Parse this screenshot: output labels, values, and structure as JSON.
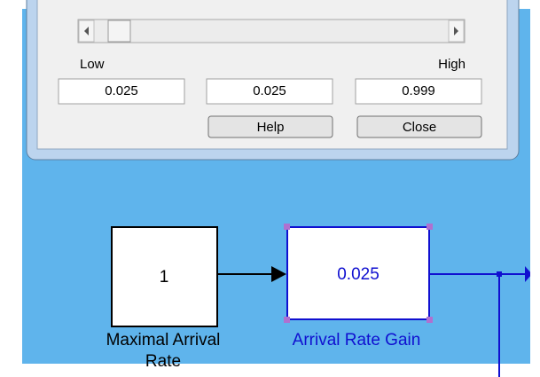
{
  "dialog": {
    "low_label": "Low",
    "high_label": "High",
    "fields": [
      "0.025",
      "0.025",
      "0.999"
    ],
    "buttons": [
      "Help",
      "Close"
    ]
  },
  "blocks": [
    {
      "value": "1",
      "label_lines": [
        "Maximal Arrival",
        "Rate"
      ]
    },
    {
      "value": "0.025",
      "label_lines": [
        "Arrival Rate Gain"
      ]
    }
  ]
}
